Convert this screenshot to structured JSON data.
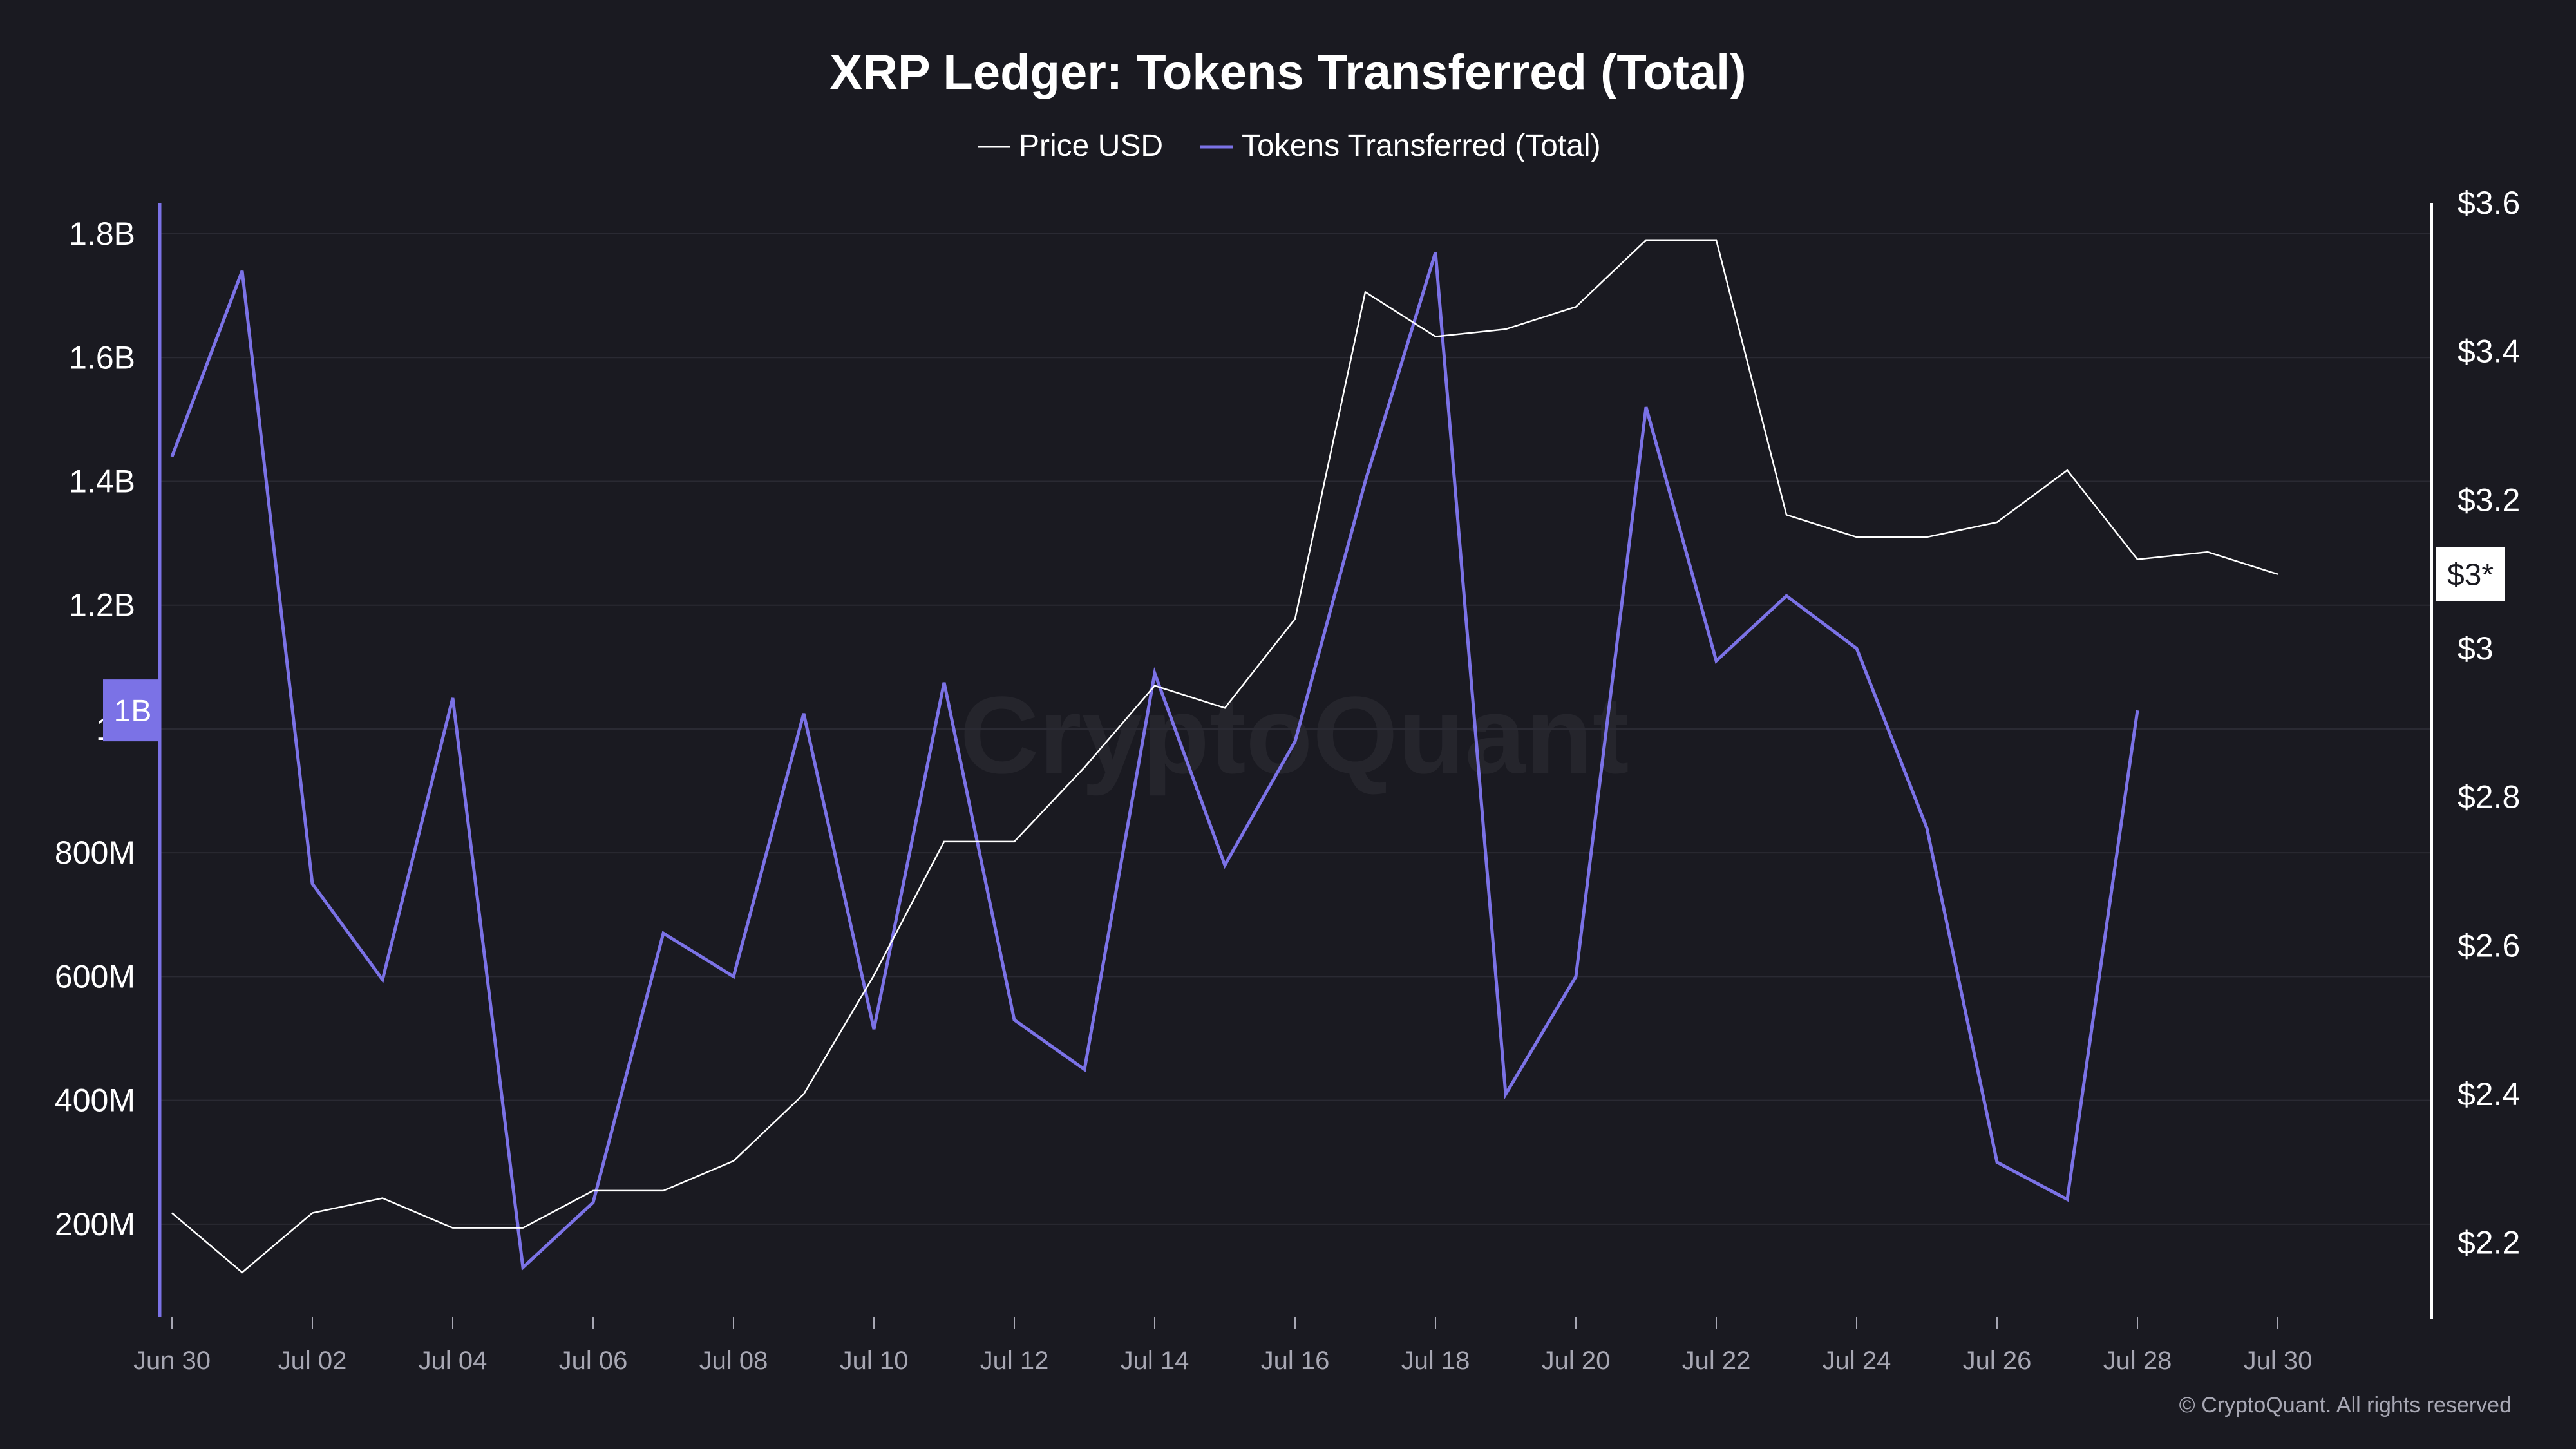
{
  "chart_data": {
    "type": "line",
    "title": "XRP Ledger: Tokens Transferred (Total)",
    "watermark": "CryptoQuant",
    "copyright": "© CryptoQuant. All rights reserved",
    "colors": {
      "background": "#1a1a21",
      "grid": "#2a2a33",
      "price": "#ffffff",
      "tokens": "#7b72e6",
      "text": "#ffffff",
      "tick": "#a7a7b3"
    },
    "legend": {
      "placement": "top-center",
      "items": [
        "Price USD",
        "Tokens Transferred (Total)"
      ]
    },
    "x": [
      "Jun 30",
      "Jul 01",
      "Jul 02",
      "Jul 03",
      "Jul 04",
      "Jul 05",
      "Jul 06",
      "Jul 07",
      "Jul 08",
      "Jul 09",
      "Jul 10",
      "Jul 11",
      "Jul 12",
      "Jul 13",
      "Jul 14",
      "Jul 15",
      "Jul 16",
      "Jul 17",
      "Jul 18",
      "Jul 19",
      "Jul 20",
      "Jul 21",
      "Jul 22",
      "Jul 23",
      "Jul 24",
      "Jul 25",
      "Jul 26",
      "Jul 27",
      "Jul 28",
      "Jul 29",
      "Jul 30"
    ],
    "x_tick_labels": [
      "Jun 30",
      "Jul 02",
      "Jul 04",
      "Jul 06",
      "Jul 08",
      "Jul 10",
      "Jul 12",
      "Jul 14",
      "Jul 16",
      "Jul 18",
      "Jul 20",
      "Jul 22",
      "Jul 24",
      "Jul 26",
      "Jul 28",
      "Jul 30"
    ],
    "series": [
      {
        "name": "Tokens Transferred (Total)",
        "axis": "left",
        "values": [
          1440000000,
          1740000000,
          750000000,
          595000000,
          1050000000,
          130000000,
          235000000,
          670000000,
          600000000,
          1025000000,
          515000000,
          1075000000,
          530000000,
          450000000,
          1090000000,
          780000000,
          980000000,
          1400000000,
          1770000000,
          410000000,
          600000000,
          1520000000,
          1110000000,
          1215000000,
          1130000000,
          840000000,
          300000000,
          240000000,
          1030000000,
          null,
          null
        ]
      },
      {
        "name": "Price USD",
        "axis": "right",
        "values": [
          2.24,
          2.16,
          2.24,
          2.26,
          2.22,
          2.22,
          2.27,
          2.27,
          2.31,
          2.4,
          2.56,
          2.74,
          2.74,
          2.84,
          2.95,
          2.92,
          3.04,
          3.48,
          3.42,
          3.43,
          3.46,
          3.55,
          3.55,
          3.18,
          3.15,
          3.15,
          3.17,
          3.24,
          3.12,
          3.13,
          3.1
        ]
      }
    ],
    "y_left": {
      "min": 50000000,
      "max": 1850000000,
      "ticks": [
        200000000,
        400000000,
        600000000,
        800000000,
        1000000000,
        1200000000,
        1400000000,
        1600000000,
        1800000000
      ],
      "tick_labels": [
        "200M",
        "400M",
        "600M",
        "800M",
        "1B",
        "1.2B",
        "1.4B",
        "1.6B",
        "1.8B"
      ]
    },
    "y_right": {
      "min": 2.1,
      "max": 3.6,
      "ticks": [
        2.2,
        2.4,
        2.6,
        2.8,
        3.0,
        3.2,
        3.4,
        3.6
      ],
      "tick_labels": [
        "$2.2",
        "$2.4",
        "$2.6",
        "$2.8",
        "$3",
        "$3.2",
        "$3.4",
        "$3.6"
      ]
    },
    "markers": {
      "left_label": "1B",
      "left_value": 1030000000,
      "right_label": "$3*",
      "right_value": 3.1
    },
    "grid": true
  }
}
